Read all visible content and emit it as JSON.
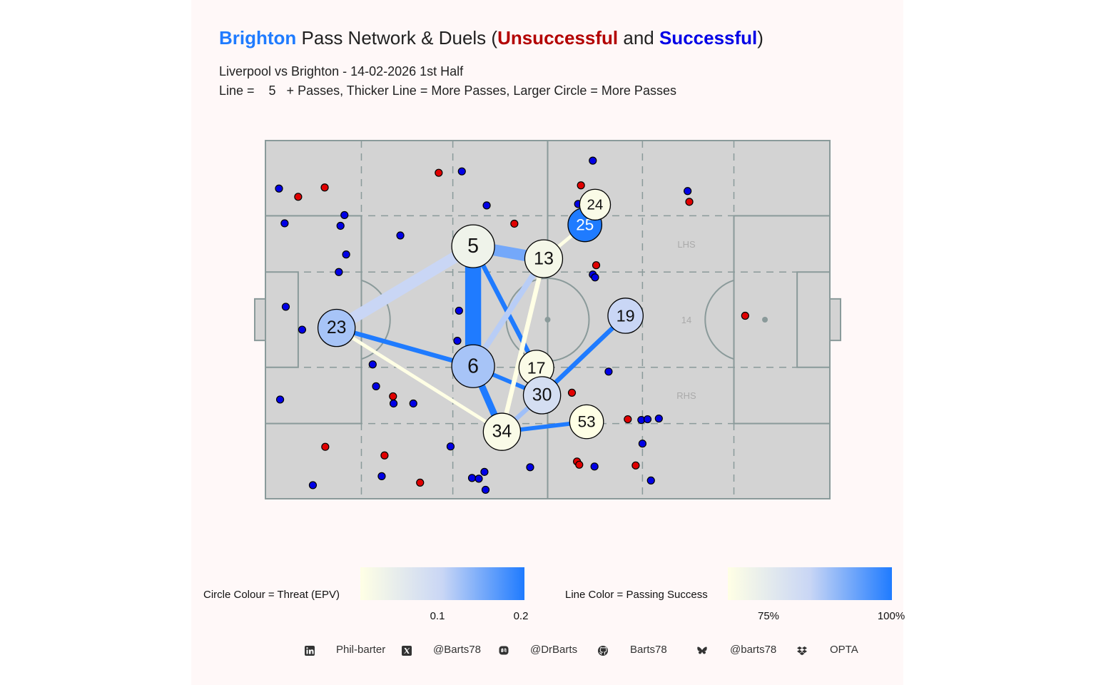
{
  "title": {
    "team": "Brighton",
    "part1": " Pass Network & Duels (",
    "unsuccessful": "Unsuccessful",
    "and": " and ",
    "successful": "Successful",
    "close": ")"
  },
  "subtitle": "Liverpool vs Brighton - 14-02-2026 1st Half",
  "subtitle2": "Line =    5   + Passes, Thicker Line = More Passes, Larger Circle = More Passes",
  "colors": {
    "panel": "#fff8f8",
    "pitch": "#d3d3d3",
    "pitch_line": "#8a9a9a",
    "team": "#1f7bff",
    "unsuccessful": "#b30000",
    "successful": "#0000e6",
    "duel_unsuccessful": "#e00000",
    "duel_successful": "#0000e6"
  },
  "pitch_labels": {
    "lhs": "LHS",
    "center": "14",
    "rhs": "RHS"
  },
  "chart_data": {
    "type": "scatter",
    "pitch": {
      "x_range": [
        0,
        100
      ],
      "y_range": [
        0,
        100
      ]
    },
    "nodes": [
      {
        "label": "5",
        "x": 36.8,
        "y": 70.5,
        "size": 1.0,
        "epv": 0.03
      },
      {
        "label": "6",
        "x": 36.8,
        "y": 37.0,
        "size": 1.0,
        "epv": 0.12
      },
      {
        "label": "13",
        "x": 49.3,
        "y": 67.0,
        "size": 0.75,
        "epv": 0.02
      },
      {
        "label": "25",
        "x": 56.6,
        "y": 76.5,
        "size": 0.55,
        "epv": 0.2
      },
      {
        "label": "24",
        "x": 58.4,
        "y": 82.1,
        "size": 0.4,
        "epv": 0.01
      },
      {
        "label": "23",
        "x": 12.6,
        "y": 47.7,
        "size": 0.72,
        "epv": 0.12
      },
      {
        "label": "19",
        "x": 63.8,
        "y": 51.1,
        "size": 0.62,
        "epv": 0.1
      },
      {
        "label": "17",
        "x": 48.0,
        "y": 36.6,
        "size": 0.6,
        "epv": 0.01
      },
      {
        "label": "30",
        "x": 49.0,
        "y": 28.9,
        "size": 0.72,
        "epv": 0.08
      },
      {
        "label": "53",
        "x": 56.9,
        "y": 21.5,
        "size": 0.55,
        "epv": 0.0
      },
      {
        "label": "34",
        "x": 41.9,
        "y": 18.7,
        "size": 0.72,
        "epv": 0.01
      }
    ],
    "edges": [
      {
        "from": "5",
        "to": "6",
        "width": 7,
        "success": 1.0
      },
      {
        "from": "5",
        "to": "13",
        "width": 5,
        "success": 0.9
      },
      {
        "from": "5",
        "to": "23",
        "width": 5,
        "success": 0.8
      },
      {
        "from": "5",
        "to": "17",
        "width": 2,
        "success": 1.0
      },
      {
        "from": "6",
        "to": "23",
        "width": 2,
        "success": 1.0
      },
      {
        "from": "6",
        "to": "13",
        "width": 2.5,
        "success": 0.82
      },
      {
        "from": "6",
        "to": "34",
        "width": 3,
        "success": 1.0
      },
      {
        "from": "6",
        "to": "30",
        "width": 1.8,
        "success": 1.0
      },
      {
        "from": "13",
        "to": "34",
        "width": 2,
        "success": 0.6
      },
      {
        "from": "13",
        "to": "25",
        "width": 1.5,
        "success": 0.6
      },
      {
        "from": "23",
        "to": "34",
        "width": 1.5,
        "success": 0.6
      },
      {
        "from": "19",
        "to": "30",
        "width": 2,
        "success": 1.0
      },
      {
        "from": "30",
        "to": "34",
        "width": 2,
        "success": 0.85
      },
      {
        "from": "34",
        "to": "53",
        "width": 1.8,
        "success": 1.0
      }
    ],
    "duels_successful": [
      [
        2.4,
        86.6
      ],
      [
        3.4,
        76.9
      ],
      [
        3.6,
        53.6
      ],
      [
        6.5,
        47.2
      ],
      [
        13.3,
        76.2
      ],
      [
        14.0,
        79.2
      ],
      [
        13.0,
        63.3
      ],
      [
        14.3,
        68.2
      ],
      [
        23.9,
        73.5
      ],
      [
        19.0,
        37.5
      ],
      [
        19.6,
        31.4
      ],
      [
        22.7,
        26.6
      ],
      [
        26.2,
        26.6
      ],
      [
        2.6,
        27.7
      ],
      [
        8.4,
        3.8
      ],
      [
        20.6,
        6.3
      ],
      [
        34.3,
        52.5
      ],
      [
        34.0,
        44.1
      ],
      [
        32.8,
        14.6
      ],
      [
        34.8,
        91.4
      ],
      [
        39.2,
        81.9
      ],
      [
        36.6,
        5.8
      ],
      [
        37.8,
        5.6
      ],
      [
        38.8,
        7.5
      ],
      [
        39.0,
        2.5
      ],
      [
        46.9,
        8.8
      ],
      [
        58.0,
        94.4
      ],
      [
        55.4,
        82.3
      ],
      [
        58.0,
        62.6
      ],
      [
        58.4,
        61.8
      ],
      [
        60.8,
        35.5
      ],
      [
        58.3,
        9.0
      ],
      [
        66.6,
        22.0
      ],
      [
        66.8,
        15.4
      ],
      [
        67.7,
        22.2
      ],
      [
        69.7,
        22.4
      ],
      [
        68.3,
        5.1
      ],
      [
        74.8,
        85.9
      ]
    ],
    "duels_unsuccessful": [
      [
        5.8,
        84.3
      ],
      [
        10.5,
        86.9
      ],
      [
        30.7,
        91.0
      ],
      [
        44.1,
        76.8
      ],
      [
        10.6,
        14.5
      ],
      [
        21.1,
        12.1
      ],
      [
        22.6,
        28.6
      ],
      [
        27.4,
        4.5
      ],
      [
        55.9,
        87.5
      ],
      [
        58.6,
        65.2
      ],
      [
        54.3,
        29.6
      ],
      [
        55.2,
        10.4
      ],
      [
        55.6,
        9.5
      ],
      [
        64.2,
        22.2
      ],
      [
        65.6,
        9.3
      ],
      [
        75.1,
        82.9
      ],
      [
        85.0,
        51.1
      ]
    ]
  },
  "legend": {
    "circle_label": "Circle Colour = Threat (EPV)",
    "circle_ticks": [
      "0.1",
      "0.2"
    ],
    "line_label": "Line Color = Passing Success",
    "line_ticks": [
      "75%",
      "100%"
    ]
  },
  "footer": {
    "linkedin": "Phil-barter",
    "x": "@Barts78",
    "mastodon": "@DrBarts",
    "github": "Barts78",
    "bluesky": "@barts78",
    "data": "OPTA",
    "icons": [
      "linkedin-icon",
      "x-icon",
      "mastodon-icon",
      "github-icon",
      "bluesky-icon",
      "dropbox-icon"
    ]
  }
}
